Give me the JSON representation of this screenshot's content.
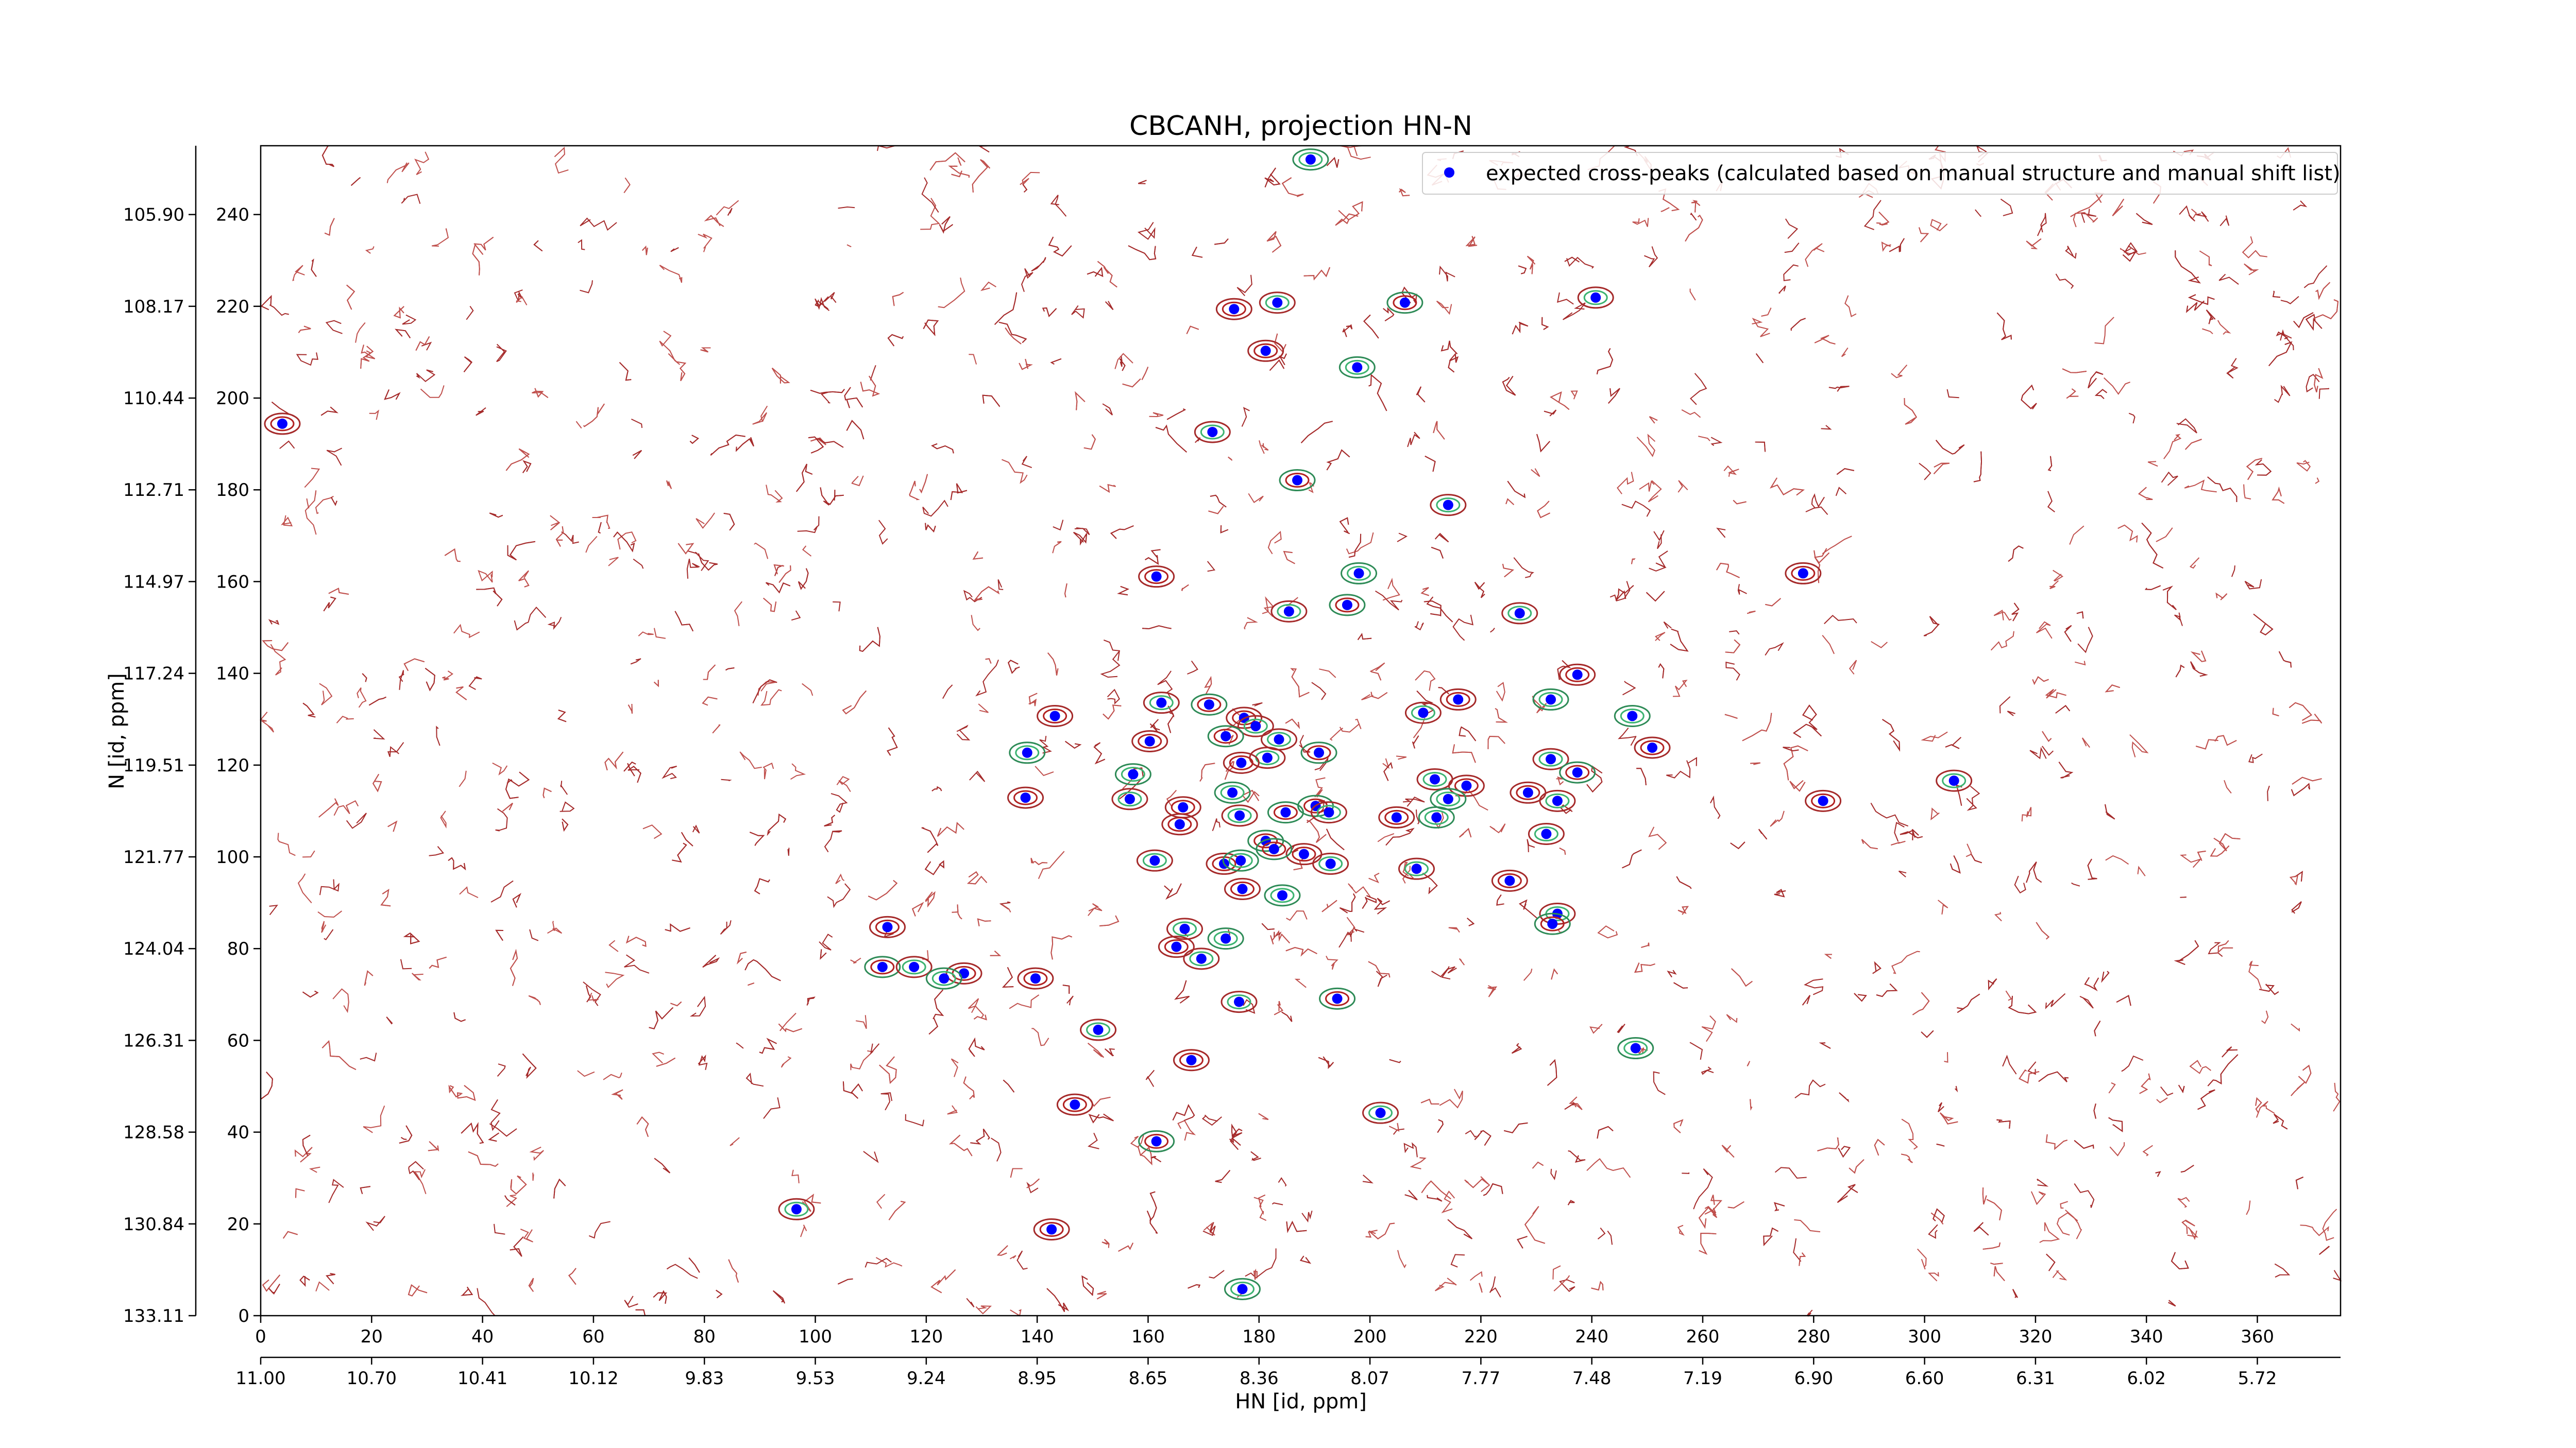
{
  "chart_data": {
    "type": "scatter",
    "title": "CBCANH, projection HN-N",
    "xlabel": "HN [id, ppm]",
    "ylabel": "N [id, ppm]",
    "xlim": [
      0,
      375
    ],
    "ylim": [
      0,
      255
    ],
    "xticks": [
      0,
      20,
      40,
      60,
      80,
      100,
      120,
      140,
      160,
      180,
      200,
      220,
      240,
      260,
      280,
      300,
      320,
      340,
      360
    ],
    "yticks": [
      0,
      20,
      40,
      60,
      80,
      100,
      120,
      140,
      160,
      180,
      200,
      220,
      240
    ],
    "xticks_ppm": [
      {
        "value": 0,
        "label": "11.00"
      },
      {
        "value": 20,
        "label": "10.70"
      },
      {
        "value": 40,
        "label": "10.41"
      },
      {
        "value": 60,
        "label": "10.12"
      },
      {
        "value": 80,
        "label": "9.83"
      },
      {
        "value": 100,
        "label": "9.53"
      },
      {
        "value": 120,
        "label": "9.24"
      },
      {
        "value": 140,
        "label": "8.95"
      },
      {
        "value": 160,
        "label": "8.65"
      },
      {
        "value": 180,
        "label": "8.36"
      },
      {
        "value": 200,
        "label": "8.07"
      },
      {
        "value": 220,
        "label": "7.77"
      },
      {
        "value": 240,
        "label": "7.48"
      },
      {
        "value": 260,
        "label": "7.19"
      },
      {
        "value": 280,
        "label": "6.90"
      },
      {
        "value": 300,
        "label": "6.60"
      },
      {
        "value": 320,
        "label": "6.31"
      },
      {
        "value": 340,
        "label": "6.02"
      },
      {
        "value": 360,
        "label": "5.72"
      }
    ],
    "yticks_ppm": [
      {
        "value": 0,
        "label": "133.11"
      },
      {
        "value": 20,
        "label": "130.84"
      },
      {
        "value": 40,
        "label": "128.58"
      },
      {
        "value": 60,
        "label": "126.31"
      },
      {
        "value": 80,
        "label": "124.04"
      },
      {
        "value": 100,
        "label": "121.77"
      },
      {
        "value": 120,
        "label": "119.51"
      },
      {
        "value": 140,
        "label": "117.24"
      },
      {
        "value": 160,
        "label": "114.97"
      },
      {
        "value": 180,
        "label": "112.71"
      },
      {
        "value": 200,
        "label": "110.44"
      },
      {
        "value": 220,
        "label": "108.17"
      },
      {
        "value": 240,
        "label": "105.90"
      }
    ],
    "legend": "upper right",
    "series": [
      {
        "name": "expected cross-peaks (calculated based on manual structure and manual shift list)",
        "color": "#0000ff",
        "x": [
          189.3,
          175.5,
          183.3,
          206.3,
          240.7,
          181.2,
          197.7,
          3.9,
          171.6,
          186.9,
          214.1,
          161.5,
          198,
          278.1,
          185.4,
          195.9,
          227,
          237.4,
          232.6,
          143.2,
          162.4,
          171,
          209.6,
          215.9,
          247.3,
          177.3,
          179.4,
          174,
          183.6,
          250.9,
          138.2,
          160.3,
          181.5,
          190.8,
          232.6,
          176.8,
          157.3,
          137.9,
          156.7,
          190.2,
          211.7,
          217.4,
          214.1,
          228.5,
          233.8,
          237.4,
          305.3,
          281.7,
          175.2,
          166.3,
          176.5,
          184.8,
          192.6,
          204.8,
          212,
          165.7,
          231.8,
          181.2,
          161.2,
          173.7,
          176.7,
          188.1,
          192.9,
          182.7,
          208.4,
          177,
          184.2,
          225.2,
          233.8,
          232.9,
          166.6,
          113,
          174,
          165.1,
          169.6,
          112.1,
          117.8,
          126.8,
          123.2,
          139.7,
          176.4,
          194.1,
          151,
          167.8,
          247.9,
          146.8,
          201.9,
          161.5,
          96.6,
          142.6,
          177
        ],
        "y": [
          252,
          219.4,
          220.8,
          220.8,
          221.9,
          210.3,
          206.7,
          194.4,
          192.6,
          182.1,
          176.7,
          161.1,
          161.8,
          161.8,
          153.5,
          154.9,
          153.1,
          139.7,
          134.3,
          130.7,
          133.6,
          133.2,
          131.4,
          134.3,
          130.7,
          130.3,
          128.5,
          126.3,
          125.6,
          123.8,
          122.7,
          125.2,
          121.6,
          122.7,
          121.3,
          120.5,
          118,
          112.9,
          112.6,
          111.1,
          116.9,
          115.5,
          112.6,
          114,
          112.2,
          118.4,
          116.6,
          112.2,
          114,
          110.8,
          109,
          109.7,
          109.7,
          108.6,
          108.6,
          107.1,
          105,
          103.5,
          99.2,
          98.5,
          99.2,
          100.6,
          98.5,
          101.7,
          97.4,
          93,
          91.6,
          94.8,
          87.6,
          85.4,
          84.3,
          84.7,
          82.2,
          80.4,
          77.8,
          76,
          76,
          74.6,
          73.5,
          73.5,
          68.4,
          69.1,
          62.3,
          55.7,
          58.3,
          46,
          44.2,
          38,
          23.2,
          18.8,
          5.8
        ]
      }
    ]
  }
}
